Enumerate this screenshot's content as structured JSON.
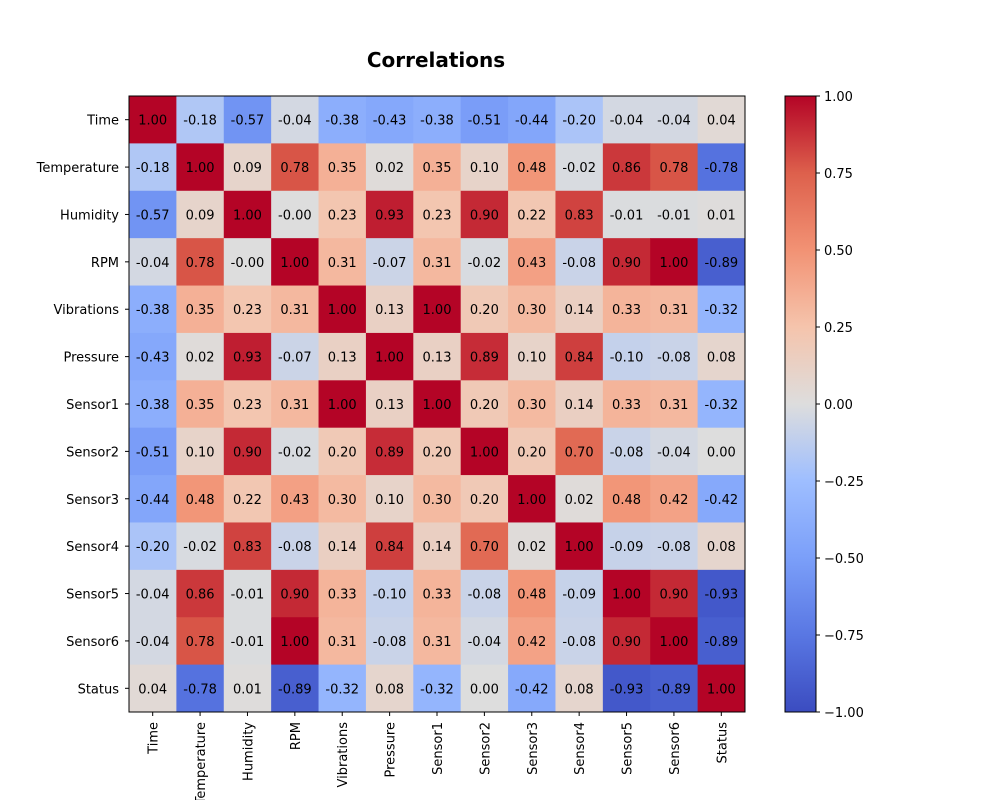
{
  "chart_data": {
    "type": "heatmap",
    "title": "Correlations",
    "xlabel": "",
    "ylabel": "",
    "categories": [
      "Time",
      "Temperature",
      "Humidity",
      "RPM",
      "Vibrations",
      "Pressure",
      "Sensor1",
      "Sensor2",
      "Sensor3",
      "Sensor4",
      "Sensor5",
      "Sensor6",
      "Status"
    ],
    "value_labels": [
      [
        "1.00",
        "-0.18",
        "-0.57",
        "-0.04",
        "-0.38",
        "-0.43",
        "-0.38",
        "-0.51",
        "-0.44",
        "-0.20",
        "-0.04",
        "-0.04",
        "0.04"
      ],
      [
        "-0.18",
        "1.00",
        "0.09",
        "0.78",
        "0.35",
        "0.02",
        "0.35",
        "0.10",
        "0.48",
        "-0.02",
        "0.86",
        "0.78",
        "-0.78"
      ],
      [
        "-0.57",
        "0.09",
        "1.00",
        "-0.00",
        "0.23",
        "0.93",
        "0.23",
        "0.90",
        "0.22",
        "0.83",
        "-0.01",
        "-0.01",
        "0.01"
      ],
      [
        "-0.04",
        "0.78",
        "-0.00",
        "1.00",
        "0.31",
        "-0.07",
        "0.31",
        "-0.02",
        "0.43",
        "-0.08",
        "0.90",
        "1.00",
        "-0.89"
      ],
      [
        "-0.38",
        "0.35",
        "0.23",
        "0.31",
        "1.00",
        "0.13",
        "1.00",
        "0.20",
        "0.30",
        "0.14",
        "0.33",
        "0.31",
        "-0.32"
      ],
      [
        "-0.43",
        "0.02",
        "0.93",
        "-0.07",
        "0.13",
        "1.00",
        "0.13",
        "0.89",
        "0.10",
        "0.84",
        "-0.10",
        "-0.08",
        "0.08"
      ],
      [
        "-0.38",
        "0.35",
        "0.23",
        "0.31",
        "1.00",
        "0.13",
        "1.00",
        "0.20",
        "0.30",
        "0.14",
        "0.33",
        "0.31",
        "-0.32"
      ],
      [
        "-0.51",
        "0.10",
        "0.90",
        "-0.02",
        "0.20",
        "0.89",
        "0.20",
        "1.00",
        "0.20",
        "0.70",
        "-0.08",
        "-0.04",
        "0.00"
      ],
      [
        "-0.44",
        "0.48",
        "0.22",
        "0.43",
        "0.30",
        "0.10",
        "0.30",
        "0.20",
        "1.00",
        "0.02",
        "0.48",
        "0.42",
        "-0.42"
      ],
      [
        "-0.20",
        "-0.02",
        "0.83",
        "-0.08",
        "0.14",
        "0.84",
        "0.14",
        "0.70",
        "0.02",
        "1.00",
        "-0.09",
        "-0.08",
        "0.08"
      ],
      [
        "-0.04",
        "0.86",
        "-0.01",
        "0.90",
        "0.33",
        "-0.10",
        "0.33",
        "-0.08",
        "0.48",
        "-0.09",
        "1.00",
        "0.90",
        "-0.93"
      ],
      [
        "-0.04",
        "0.78",
        "-0.01",
        "1.00",
        "0.31",
        "-0.08",
        "0.31",
        "-0.04",
        "0.42",
        "-0.08",
        "0.90",
        "1.00",
        "-0.89"
      ],
      [
        "0.04",
        "-0.78",
        "0.01",
        "-0.89",
        "-0.32",
        "0.08",
        "-0.32",
        "0.00",
        "-0.42",
        "0.08",
        "-0.93",
        "-0.89",
        "1.00"
      ]
    ],
    "colormap": "coolwarm",
    "vmin": -1.0,
    "vmax": 1.0,
    "colorbar_ticks": [
      "1.00",
      "0.75",
      "0.50",
      "0.25",
      "0.00",
      "−0.25",
      "−0.50",
      "−0.75",
      "−1.00"
    ],
    "colorbar_tick_values": [
      1.0,
      0.75,
      0.5,
      0.25,
      0.0,
      -0.25,
      -0.5,
      -0.75,
      -1.0
    ],
    "x_tick_rotation": "vertical",
    "grid": false
  }
}
